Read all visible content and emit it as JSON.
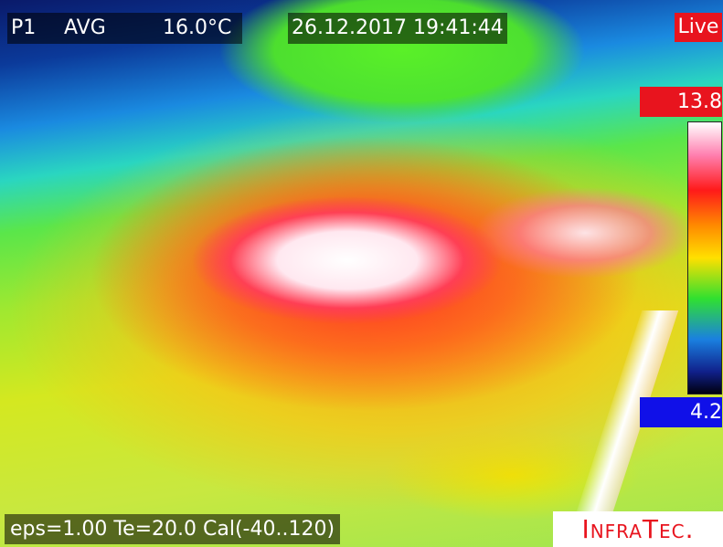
{
  "header": {
    "point": "P1",
    "mode": "AVG",
    "temperature": "16.0°C",
    "timestamp": "26.12.2017 19:41:44",
    "status": "Live"
  },
  "scale": {
    "max": "13.8",
    "min": "4.2"
  },
  "footer": {
    "parameters": "eps=1.00 Te=20.0 Cal(-40..120)",
    "brand": "InfraTec."
  }
}
